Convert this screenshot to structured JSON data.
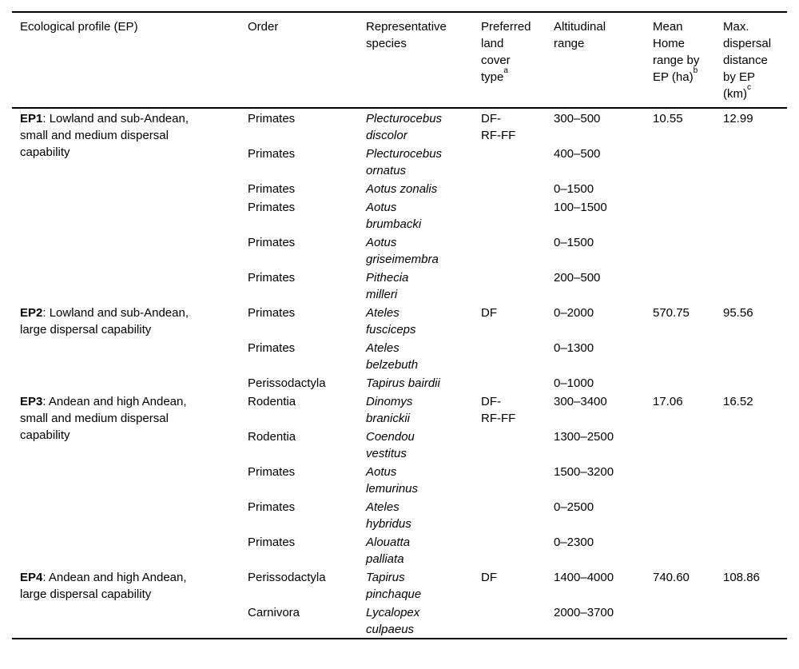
{
  "table": {
    "headers": [
      {
        "label": "Ecological profile (EP)",
        "sup": ""
      },
      {
        "label": "Order",
        "sup": ""
      },
      {
        "label": "Representative species",
        "sup": ""
      },
      {
        "label": "Preferred land cover type",
        "sup": "a"
      },
      {
        "label": "Altitudinal range",
        "sup": ""
      },
      {
        "label": "Mean Home range by EP (ha)",
        "sup": "b"
      },
      {
        "label": "Max. dispersal distance by EP (km)",
        "sup": "c"
      }
    ],
    "groups": [
      {
        "ep_label": "EP1",
        "ep_desc": ": Lowland and sub-Andean, small and medium dispersal capability",
        "land_cover": "DF-RF-FF",
        "home_range": "10.55",
        "dispersal": "12.99",
        "rows": [
          {
            "order": "Primates",
            "species": "Plecturocebus discolor",
            "altitude": "300–500"
          },
          {
            "order": "Primates",
            "species": "Plecturocebus ornatus",
            "altitude": "400–500"
          },
          {
            "order": "Primates",
            "species": "Aotus zonalis",
            "altitude": "0–1500"
          },
          {
            "order": "Primates",
            "species": "Aotus brumbacki",
            "altitude": "100–1500"
          },
          {
            "order": "Primates",
            "species": "Aotus griseimembra",
            "altitude": "0–1500"
          },
          {
            "order": "Primates",
            "species": "Pithecia milleri",
            "altitude": "200–500"
          }
        ]
      },
      {
        "ep_label": "EP2",
        "ep_desc": ": Lowland and sub-Andean, large dispersal capability",
        "land_cover": "DF",
        "home_range": "570.75",
        "dispersal": "95.56",
        "rows": [
          {
            "order": "Primates",
            "species": "Ateles fusciceps",
            "altitude": "0–2000"
          },
          {
            "order": "Primates",
            "species": "Ateles belzebuth",
            "altitude": "0–1300"
          },
          {
            "order": "Perissodactyla",
            "species": "Tapirus bairdii",
            "altitude": "0–1000"
          }
        ]
      },
      {
        "ep_label": "EP3",
        "ep_desc": ": Andean and high Andean, small and medium dispersal capability",
        "land_cover": "DF-RF-FF",
        "home_range": "17.06",
        "dispersal": "16.52",
        "rows": [
          {
            "order": "Rodentia",
            "species": "Dinomys branickii",
            "altitude": "300–3400"
          },
          {
            "order": "Rodentia",
            "species": "Coendou vestitus",
            "altitude": "1300–2500"
          },
          {
            "order": "Primates",
            "species": "Aotus lemurinus",
            "altitude": "1500–3200"
          },
          {
            "order": "Primates",
            "species": "Ateles hybridus",
            "altitude": "0–2500"
          },
          {
            "order": "Primates",
            "species": "Alouatta palliata",
            "altitude": "0–2300"
          }
        ]
      },
      {
        "ep_label": "EP4",
        "ep_desc": ": Andean and high Andean, large dispersal capability",
        "land_cover": "DF",
        "home_range": "740.60",
        "dispersal": "108.86",
        "rows": [
          {
            "order": "Perissodactyla",
            "species": "Tapirus pinchaque",
            "altitude": "1400–4000"
          },
          {
            "order": "Carnivora",
            "species": "Lycalopex culpaeus",
            "altitude": "2000–3700"
          }
        ]
      }
    ]
  }
}
